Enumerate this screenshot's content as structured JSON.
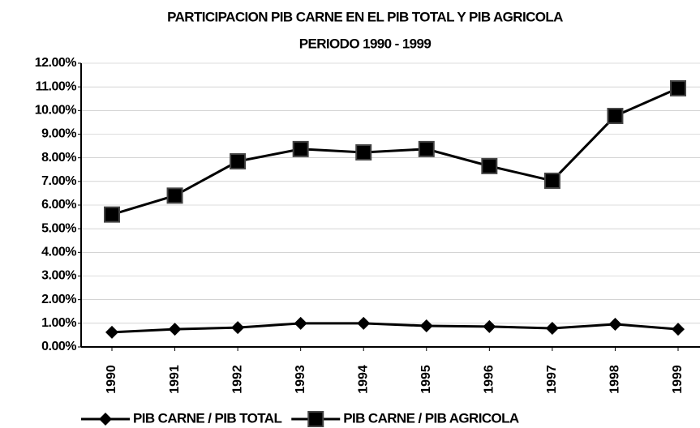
{
  "chart_data": {
    "type": "line",
    "title": "PARTICIPACION PIB CARNE EN EL PIB TOTAL Y PIB AGRICOLA",
    "subtitle": "PERIODO 1990 - 1999",
    "categories": [
      "1990",
      "1991",
      "1992",
      "1993",
      "1994",
      "1995",
      "1996",
      "1997",
      "1998",
      "1999"
    ],
    "series": [
      {
        "name": "PIB CARNE / PIB TOTAL",
        "color": "#000000",
        "marker": "diamond",
        "values": [
          0.62,
          0.75,
          0.82,
          1.0,
          1.0,
          0.89,
          0.86,
          0.79,
          0.96,
          0.75
        ]
      },
      {
        "name": "PIB CARNE / PIB AGRICOLA",
        "color": "#000000",
        "marker": "square",
        "values": [
          5.6,
          6.4,
          7.85,
          8.37,
          8.23,
          8.37,
          7.65,
          7.03,
          9.77,
          10.94
        ]
      }
    ],
    "ylim": [
      0,
      12
    ],
    "yticks": [
      {
        "value": 0,
        "label": "0.00%"
      },
      {
        "value": 1,
        "label": "1.00%"
      },
      {
        "value": 2,
        "label": "2.00%"
      },
      {
        "value": 3,
        "label": "3.00%"
      },
      {
        "value": 4,
        "label": "4.00%"
      },
      {
        "value": 5,
        "label": "5.00%"
      },
      {
        "value": 6,
        "label": "6.00%"
      },
      {
        "value": 7,
        "label": "7.00%"
      },
      {
        "value": 8,
        "label": "8.00%"
      },
      {
        "value": 9,
        "label": "9.00%"
      },
      {
        "value": 10,
        "label": "10.00%"
      },
      {
        "value": 11,
        "label": "11.00%"
      },
      {
        "value": 12,
        "label": "12.00%"
      }
    ],
    "grid": true,
    "legend": "bottom"
  }
}
